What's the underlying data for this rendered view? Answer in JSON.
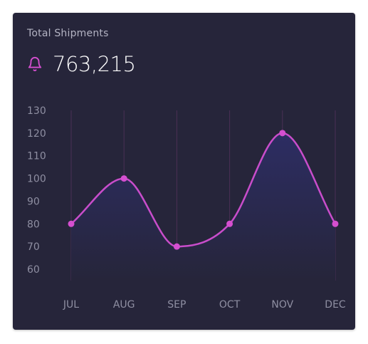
{
  "card": {
    "title": "Total Shipments",
    "value": "763,215",
    "icon": "bell-icon"
  },
  "colors": {
    "background": "#26253a",
    "accent": "#d54fd0",
    "line": "#c94dcb",
    "gridline": "#4a2f55",
    "area_top": "#2d2d63",
    "tick_text": "#8f8fa2"
  },
  "chart_data": {
    "type": "area",
    "categories": [
      "JUL",
      "AUG",
      "SEP",
      "OCT",
      "NOV",
      "DEC"
    ],
    "values": [
      80,
      100,
      70,
      80,
      120,
      80
    ],
    "yticks": [
      60,
      70,
      80,
      90,
      100,
      110,
      120,
      130
    ],
    "ylim": [
      60,
      130
    ],
    "title": "",
    "xlabel": "",
    "ylabel": "",
    "grid": "vertical",
    "curve": "smooth",
    "markers": true,
    "legend": "none"
  }
}
